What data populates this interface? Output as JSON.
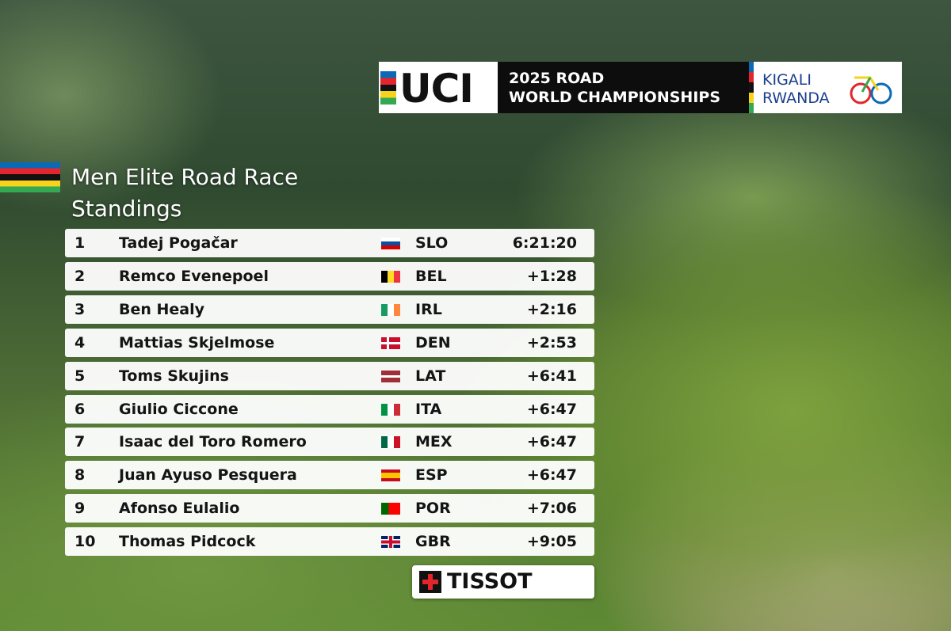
{
  "header": {
    "logo": "UCI",
    "event": [
      "2025 ROAD",
      "WORLD CHAMPIONSHIPS"
    ],
    "location": [
      "KIGALI",
      "RWANDA"
    ]
  },
  "title": [
    "Men Elite Road Race",
    "Standings"
  ],
  "table": {
    "rows": [
      [
        "1",
        "Tadej Pogačar",
        "SLO",
        "6:21:20"
      ],
      [
        "2",
        "Remco Evenepoel",
        "BEL",
        "+1:28"
      ],
      [
        "3",
        "Ben Healy",
        "IRL",
        "+2:16"
      ],
      [
        "4",
        "Mattias Skjelmose",
        "DEN",
        "+2:53"
      ],
      [
        "5",
        "Toms Skujins",
        "LAT",
        "+6:41"
      ],
      [
        "6",
        "Giulio Ciccone",
        "ITA",
        "+6:47"
      ],
      [
        "7",
        "Isaac del Toro Romero",
        "MEX",
        "+6:47"
      ],
      [
        "8",
        "Juan Ayuso Pesquera",
        "ESP",
        "+6:47"
      ],
      [
        "9",
        "Afonso Eulalio",
        "POR",
        "+7:06"
      ],
      [
        "10",
        "Thomas Pidcock",
        "GBR",
        "+9:05"
      ]
    ]
  },
  "sponsor": "TISSOT"
}
